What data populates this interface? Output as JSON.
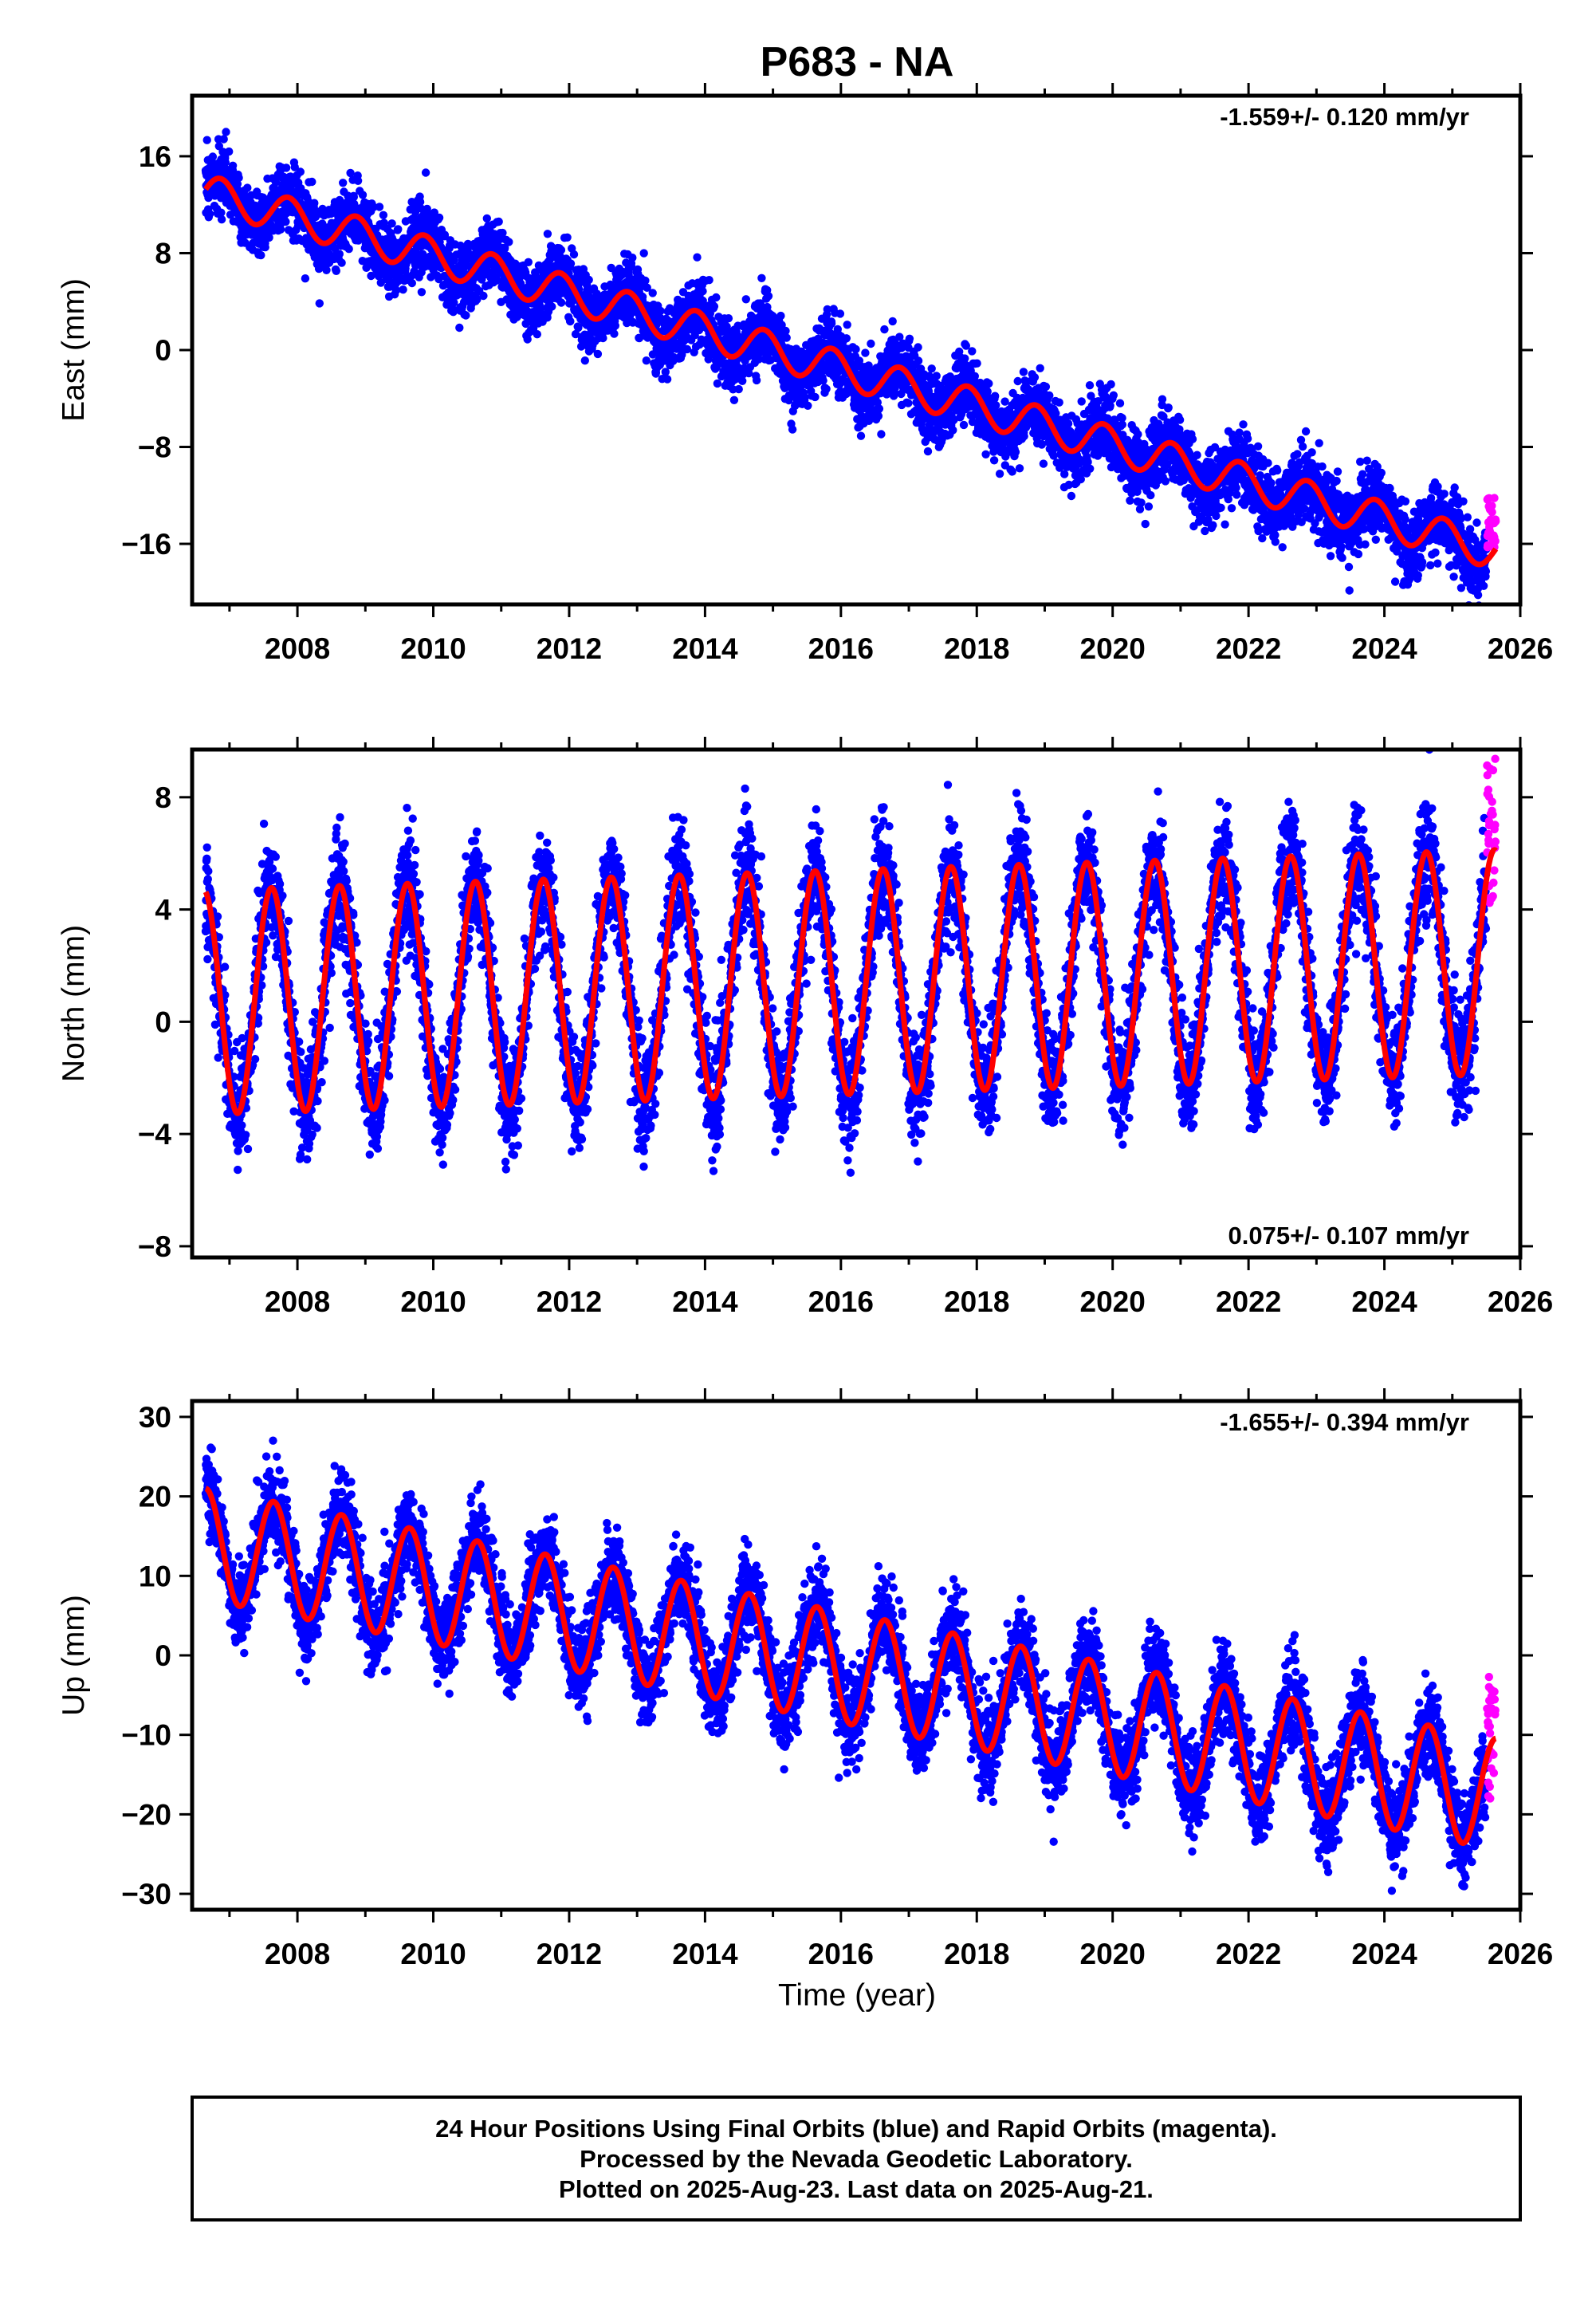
{
  "chart_data": {
    "type": "scatter",
    "title": "P683 - NA",
    "xlabel": "Time (year)",
    "x_ticks": [
      2008,
      2010,
      2012,
      2014,
      2016,
      2018,
      2020,
      2022,
      2024,
      2026
    ],
    "xlim": [
      2006.45,
      2026
    ],
    "data_start": 2006.65,
    "last_final": 2025.5,
    "last_data": 2025.64,
    "colors": {
      "final": "#0000ff",
      "rapid": "#ff00ff",
      "model": "#ff0000"
    },
    "panels": [
      {
        "name": "east",
        "ylabel": "East (mm)",
        "rate": "-1.559+/- 0.120 mm/yr",
        "rate_position": "top-right",
        "ylim": [
          -21,
          21
        ],
        "y_ticks": [
          16,
          8,
          0,
          -8,
          -16
        ],
        "y_tick_labels": [
          "16",
          "8",
          "0",
          "−8",
          "−16"
        ],
        "model": {
          "intercept": 13.0,
          "slope": -1.559,
          "annual_amp": 1.5,
          "annual_phase_year": 2006.87,
          "scatter": 1.4
        },
        "rapid_range": [
          -16.5,
          -12.0
        ]
      },
      {
        "name": "north",
        "ylabel": "North (mm)",
        "rate": "0.075+/- 0.107 mm/yr",
        "rate_position": "bottom-right",
        "ylim": [
          -8.4,
          9.7
        ],
        "y_ticks": [
          8,
          4,
          0,
          -4,
          -8
        ],
        "y_tick_labels": [
          "8",
          "4",
          "0",
          "−4",
          "−8"
        ],
        "model": {
          "intercept": 0.7,
          "slope": 0.075,
          "annual_amp": 4.0,
          "annual_phase_year": 2006.62,
          "scatter": 1.0
        },
        "rapid_range": [
          3.8,
          9.4
        ]
      },
      {
        "name": "up",
        "ylabel": "Up (mm)",
        "rate": "-1.655+/- 0.394 mm/yr",
        "rate_position": "top-right",
        "ylim": [
          -32,
          32
        ],
        "y_ticks": [
          30,
          20,
          10,
          0,
          -10,
          -20,
          -30
        ],
        "y_tick_labels": [
          "30",
          "20",
          "10",
          "0",
          "−10",
          "−20",
          "−30"
        ],
        "model": {
          "intercept": 14.0,
          "slope": -1.655,
          "annual_amp": 7.0,
          "annual_phase_year": 2006.65,
          "scatter": 2.8
        },
        "rapid_range": [
          -18.0,
          -2.5
        ]
      }
    ]
  },
  "footer": {
    "line1": "24 Hour Positions Using Final Orbits (blue) and Rapid Orbits (magenta).",
    "line2": "Processed by the Nevada Geodetic Laboratory.",
    "line3": "Plotted on 2025-Aug-23. Last data on 2025-Aug-21."
  }
}
